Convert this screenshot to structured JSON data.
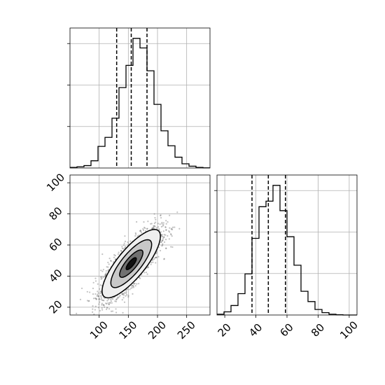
{
  "chart_data": [
    {
      "type": "histogram",
      "panel": "marginal-x",
      "x_range": [
        50,
        290
      ],
      "grid": true,
      "bins": {
        "edges": [
          50,
          62,
          74,
          86,
          98,
          110,
          122,
          134,
          146,
          158,
          170,
          182,
          194,
          206,
          218,
          230,
          242,
          254,
          266,
          278,
          290
        ],
        "counts": [
          1,
          2,
          4,
          12,
          36,
          51,
          83,
          134,
          171,
          216,
          200,
          162,
          106,
          62,
          37,
          18,
          7,
          3,
          1,
          0.3
        ]
      },
      "quantiles": [
        130,
        155,
        182
      ],
      "xticks": [
        "100",
        "150",
        "200",
        "250"
      ]
    },
    {
      "type": "scatter-density",
      "panel": "joint",
      "x_range": [
        50,
        290
      ],
      "y_range": [
        15,
        105
      ],
      "grid": true,
      "xticks": [
        "100",
        "150",
        "200",
        "250"
      ],
      "yticks": [
        "20",
        "40",
        "60",
        "80",
        "100"
      ],
      "distribution": {
        "mean": [
          155,
          48
        ],
        "sd": [
          25,
          11
        ],
        "correlation": 0.8,
        "n": 2500
      }
    },
    {
      "type": "histogram",
      "panel": "marginal-y",
      "x_range": [
        15,
        105
      ],
      "grid": true,
      "bins": {
        "edges": [
          15,
          19.5,
          24,
          28.5,
          33,
          37.5,
          42,
          46.5,
          51,
          55.5,
          60,
          64.5,
          69,
          73.5,
          78,
          82.5,
          87,
          91.5,
          96,
          100.5,
          105
        ],
        "counts": [
          1,
          4,
          12,
          27,
          52,
          97,
          137,
          144,
          164,
          132,
          99,
          63,
          30,
          17,
          7,
          3,
          1,
          0.3,
          0,
          0
        ]
      },
      "quantiles": [
        37.5,
        48,
        59
      ],
      "xticks": [
        "20",
        "40",
        "60",
        "80",
        "100"
      ]
    }
  ]
}
